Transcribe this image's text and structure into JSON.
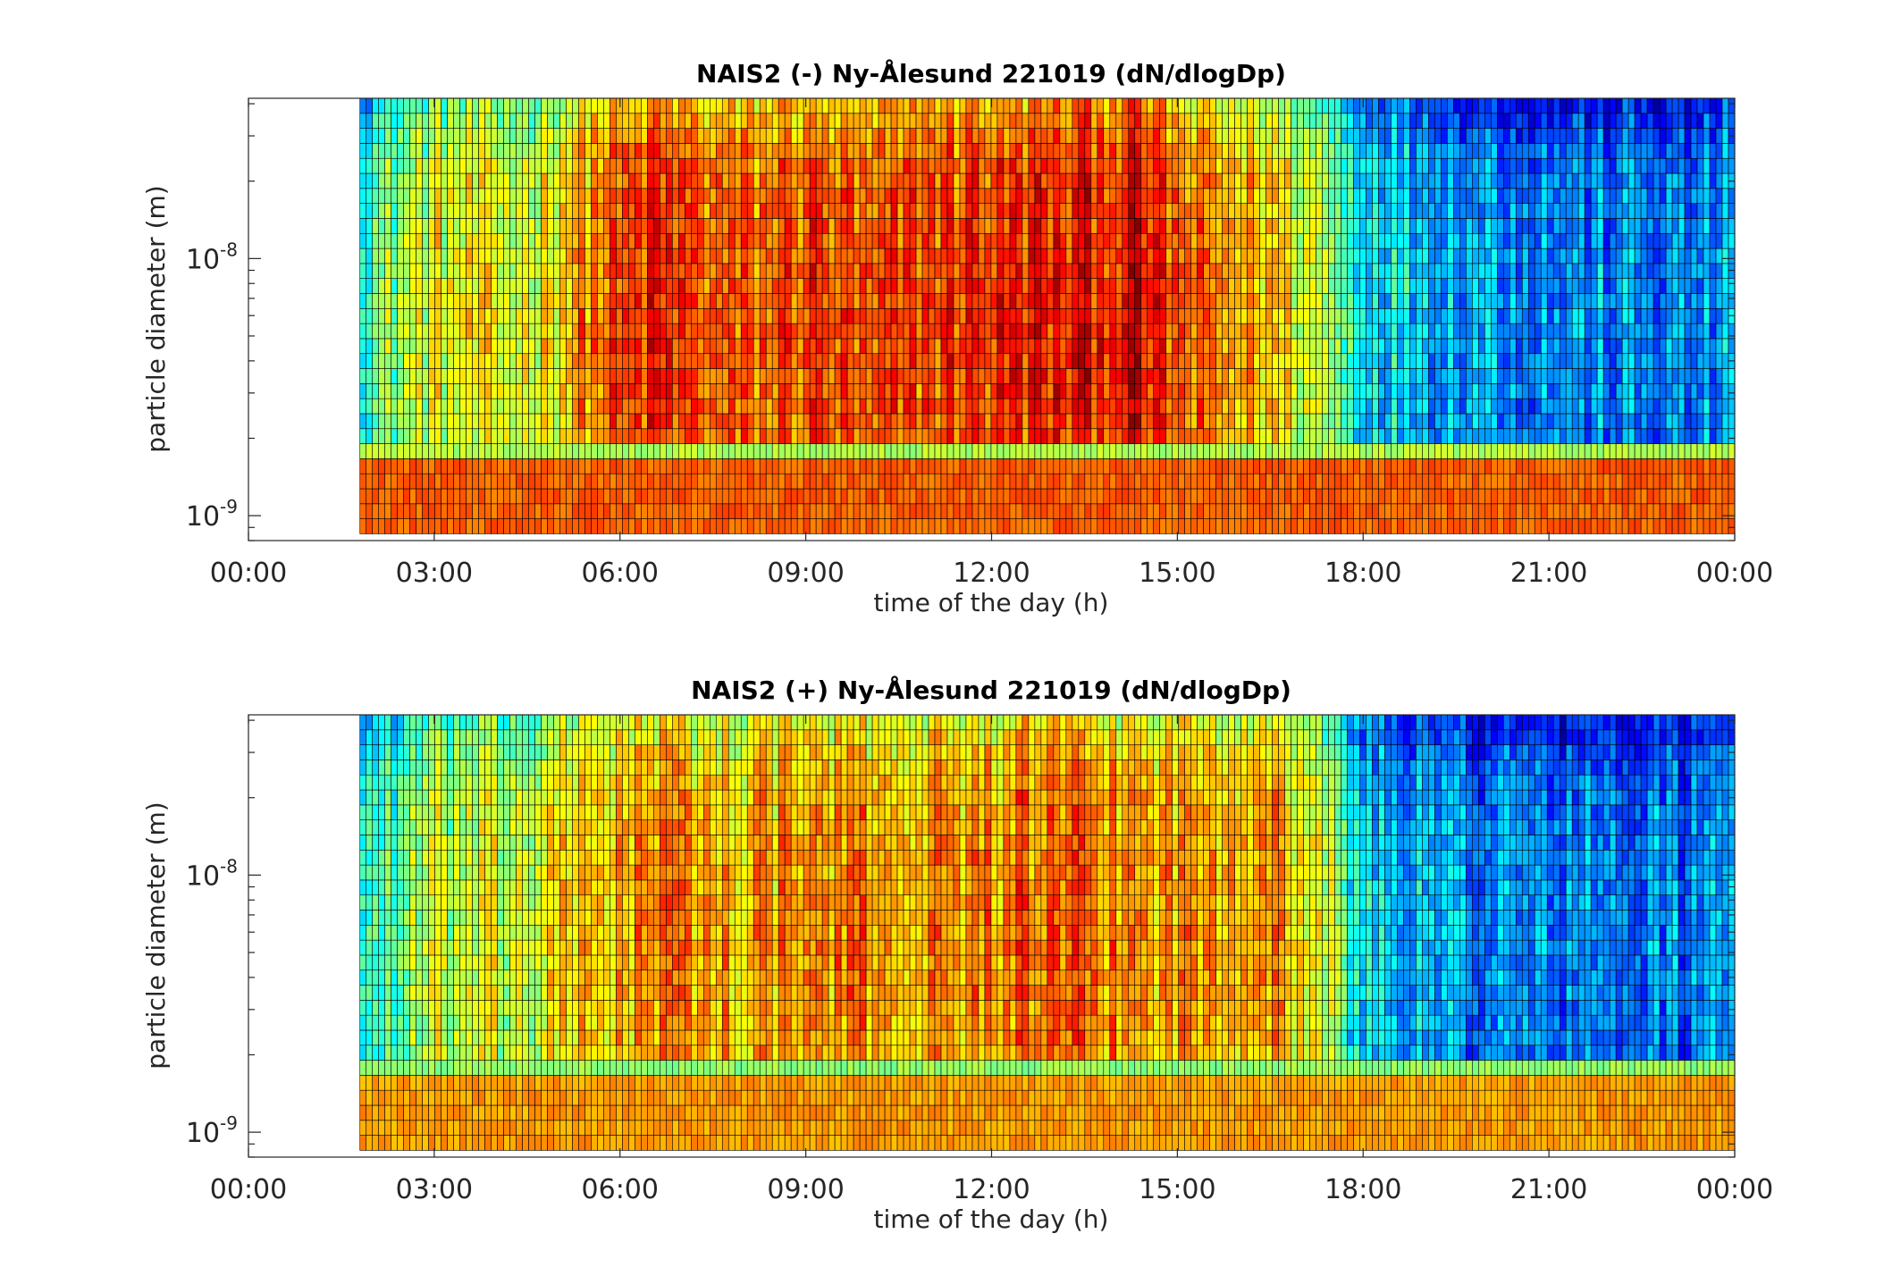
{
  "chart_data": [
    {
      "type": "heatmap",
      "title": "NAIS2 (-) Ny-Ålesund 221019 (dN/dlogDp)",
      "xlabel": "time of the day (h)",
      "ylabel": "particle diameter (m)",
      "x_ticks": [
        "00:00",
        "03:00",
        "06:00",
        "09:00",
        "12:00",
        "15:00",
        "18:00",
        "21:00",
        "00:00"
      ],
      "x_range_hours": [
        0,
        24
      ],
      "data_start_hours": 1.8,
      "y_scale": "log",
      "y_range_m": [
        8e-10,
        4.2e-08
      ],
      "y_ticks": [
        {
          "base": "10",
          "exp": "-9",
          "value": 1e-09
        },
        {
          "base": "10",
          "exp": "-8",
          "value": 1e-08
        }
      ],
      "colormap": "jet",
      "grid": "cell edges drawn in black",
      "colorbar": false,
      "time_profile": [
        [
          0,
          0.35
        ],
        [
          2.0,
          0.42
        ],
        [
          3.0,
          0.55
        ],
        [
          4.5,
          0.55
        ],
        [
          5.5,
          0.68
        ],
        [
          6.5,
          0.78
        ],
        [
          8.0,
          0.7
        ],
        [
          9.0,
          0.76
        ],
        [
          10.0,
          0.7
        ],
        [
          11.0,
          0.76
        ],
        [
          12.5,
          0.78
        ],
        [
          14.3,
          0.82
        ],
        [
          15.2,
          0.7
        ],
        [
          16.5,
          0.62
        ],
        [
          17.4,
          0.5
        ],
        [
          17.9,
          0.35
        ],
        [
          19.0,
          0.28
        ],
        [
          21.0,
          0.22
        ],
        [
          23.0,
          0.2
        ],
        [
          24.0,
          0.22
        ]
      ],
      "low_size_band": [
        {
          "d_max_m": 1.6e-09,
          "value": 0.78,
          "time_hours": [
            1.8,
            24
          ]
        },
        {
          "d_max_m": 1.9e-09,
          "value": 0.55,
          "time_hours": [
            1.8,
            24
          ]
        }
      ]
    },
    {
      "type": "heatmap",
      "title": "NAIS2 (+) Ny-Ålesund 221019 (dN/dlogDp)",
      "xlabel": "time of the day (h)",
      "ylabel": "particle diameter (m)",
      "x_ticks": [
        "00:00",
        "03:00",
        "06:00",
        "09:00",
        "12:00",
        "15:00",
        "18:00",
        "21:00",
        "00:00"
      ],
      "x_range_hours": [
        0,
        24
      ],
      "data_start_hours": 1.8,
      "y_scale": "log",
      "y_range_m": [
        8e-10,
        4.2e-08
      ],
      "y_ticks": [
        {
          "base": "10",
          "exp": "-9",
          "value": 1e-09
        },
        {
          "base": "10",
          "exp": "-8",
          "value": 1e-08
        }
      ],
      "colormap": "jet",
      "grid": "cell edges drawn in black",
      "colorbar": false,
      "time_profile": [
        [
          0,
          0.32
        ],
        [
          2.0,
          0.38
        ],
        [
          3.0,
          0.5
        ],
        [
          4.5,
          0.52
        ],
        [
          5.5,
          0.62
        ],
        [
          6.5,
          0.68
        ],
        [
          8.0,
          0.64
        ],
        [
          9.0,
          0.66
        ],
        [
          10.0,
          0.68
        ],
        [
          11.0,
          0.66
        ],
        [
          12.5,
          0.7
        ],
        [
          14.0,
          0.68
        ],
        [
          15.0,
          0.66
        ],
        [
          16.3,
          0.7
        ],
        [
          17.3,
          0.56
        ],
        [
          17.9,
          0.3
        ],
        [
          19.0,
          0.24
        ],
        [
          21.0,
          0.2
        ],
        [
          23.0,
          0.2
        ],
        [
          24.0,
          0.22
        ]
      ],
      "low_size_band": [
        {
          "d_max_m": 9e-10,
          "value": 0.4,
          "time_hours": [
            1.8,
            24
          ]
        },
        {
          "d_max_m": 1.65e-09,
          "value": 0.72,
          "time_hours": [
            1.8,
            24
          ]
        },
        {
          "d_max_m": 1.95e-09,
          "value": 0.52,
          "time_hours": [
            1.8,
            24
          ]
        }
      ]
    }
  ]
}
